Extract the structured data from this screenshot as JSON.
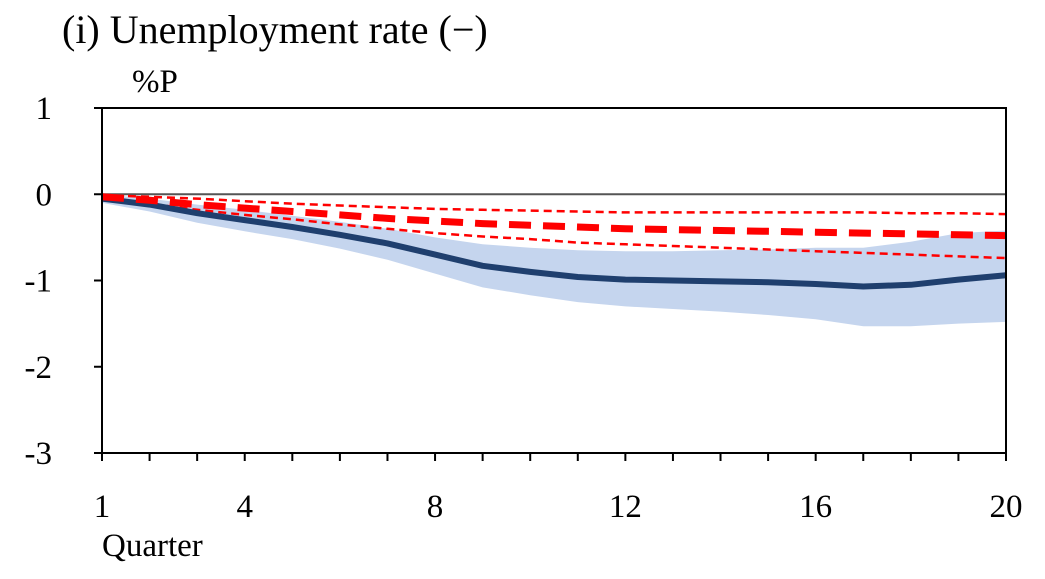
{
  "title": "(i) Unemployment rate (−)",
  "unit": "%P",
  "xlabel": "Quarter",
  "chart_data": {
    "type": "line",
    "title": "(i) Unemployment rate (−)",
    "ylabel": "%P",
    "xlabel": "Quarter",
    "ylim": [
      -3,
      1
    ],
    "xlim": [
      1,
      20
    ],
    "yticks": [
      1,
      0,
      -1,
      -2,
      -3
    ],
    "xticks": [
      1,
      4,
      8,
      12,
      16,
      20
    ],
    "x": [
      1,
      2,
      3,
      4,
      5,
      6,
      7,
      8,
      9,
      10,
      11,
      12,
      13,
      14,
      15,
      16,
      17,
      18,
      19,
      20
    ],
    "zero_line": true,
    "colors": {
      "blue_line": "#1f3f6e",
      "blue_band": "#c5d5ee",
      "red": "#ff0000",
      "zero": "#555555"
    },
    "series": [
      {
        "style": "blue-solid",
        "values": [
          -0.05,
          -0.12,
          -0.22,
          -0.3,
          -0.38,
          -0.47,
          -0.57,
          -0.7,
          -0.83,
          -0.9,
          -0.96,
          -0.99,
          -1.0,
          -1.01,
          -1.02,
          -1.04,
          -1.07,
          -1.05,
          -0.99,
          -0.94
        ]
      },
      {
        "style": "blue-band-upper",
        "values": [
          0.0,
          -0.05,
          -0.12,
          -0.18,
          -0.25,
          -0.32,
          -0.4,
          -0.5,
          -0.58,
          -0.62,
          -0.65,
          -0.66,
          -0.66,
          -0.65,
          -0.64,
          -0.62,
          -0.62,
          -0.55,
          -0.45,
          -0.42
        ]
      },
      {
        "style": "blue-band-lower",
        "values": [
          -0.1,
          -0.2,
          -0.33,
          -0.43,
          -0.52,
          -0.63,
          -0.76,
          -0.92,
          -1.08,
          -1.17,
          -1.25,
          -1.3,
          -1.33,
          -1.36,
          -1.4,
          -1.45,
          -1.53,
          -1.53,
          -1.5,
          -1.48
        ]
      },
      {
        "style": "red-thick-dashed",
        "values": [
          -0.03,
          -0.07,
          -0.12,
          -0.16,
          -0.2,
          -0.24,
          -0.28,
          -0.31,
          -0.34,
          -0.36,
          -0.38,
          -0.4,
          -0.41,
          -0.42,
          -0.43,
          -0.44,
          -0.45,
          -0.46,
          -0.47,
          -0.48
        ]
      },
      {
        "style": "red-thin-dashed-upper",
        "values": [
          -0.01,
          -0.03,
          -0.05,
          -0.08,
          -0.11,
          -0.13,
          -0.15,
          -0.17,
          -0.18,
          -0.19,
          -0.2,
          -0.21,
          -0.21,
          -0.21,
          -0.21,
          -0.21,
          -0.21,
          -0.22,
          -0.22,
          -0.23
        ]
      },
      {
        "style": "red-thin-dashed-lower",
        "values": [
          -0.05,
          -0.11,
          -0.18,
          -0.24,
          -0.29,
          -0.35,
          -0.4,
          -0.45,
          -0.49,
          -0.52,
          -0.56,
          -0.58,
          -0.6,
          -0.62,
          -0.64,
          -0.66,
          -0.68,
          -0.7,
          -0.72,
          -0.74
        ]
      }
    ]
  }
}
